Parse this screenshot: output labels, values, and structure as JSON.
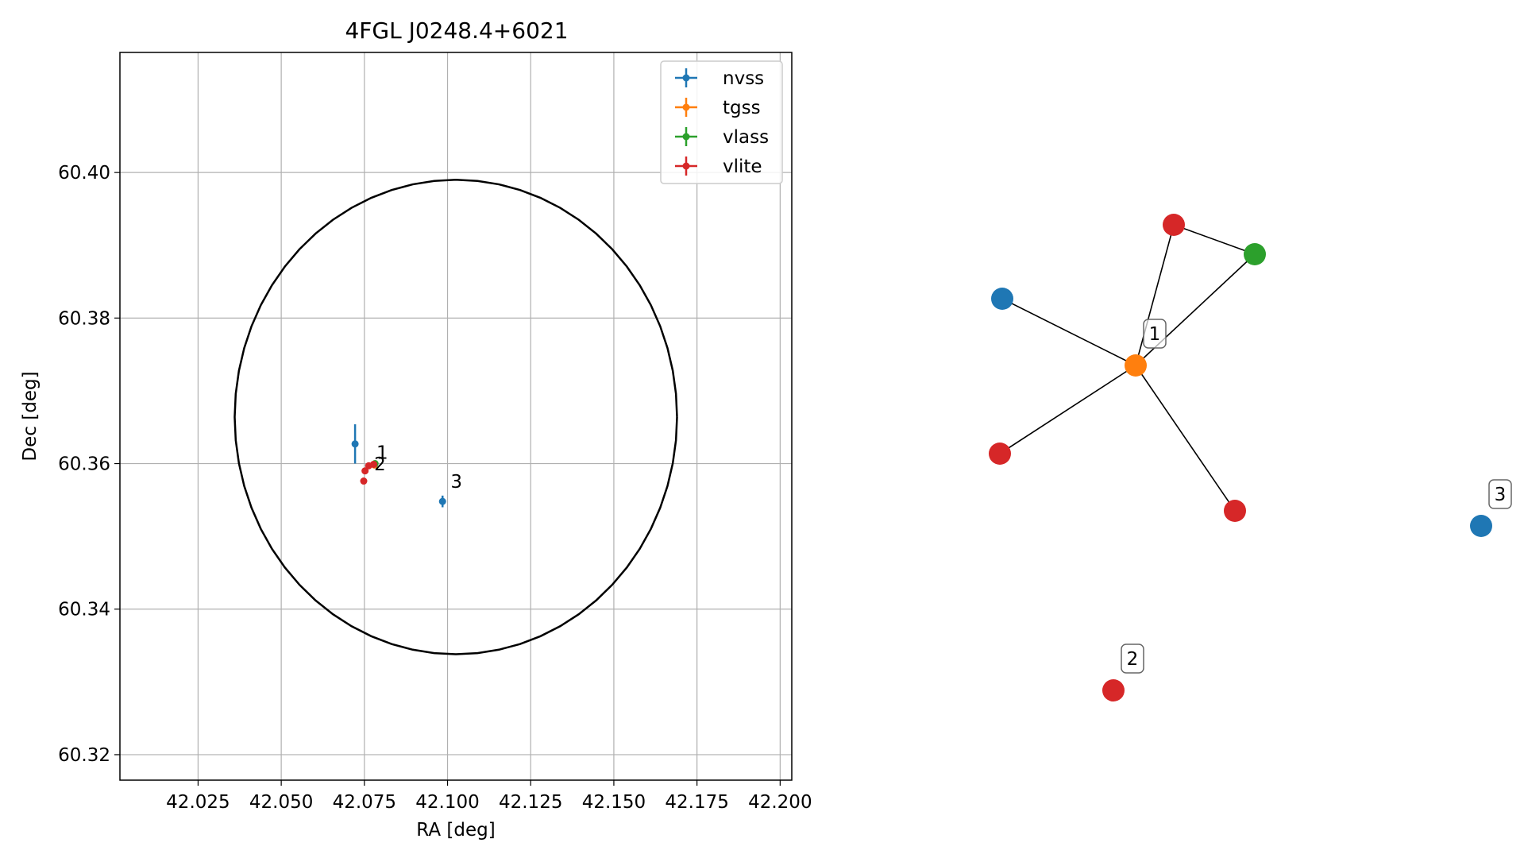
{
  "chart_data": [
    {
      "type": "scatter",
      "title": "4FGL J0248.4+6021",
      "xlabel": "RA [deg]",
      "ylabel": "Dec [deg]",
      "xlim": [
        42.0015,
        42.2035
      ],
      "ylim": [
        60.3165,
        60.4165
      ],
      "xticks": [
        42.025,
        42.05,
        42.075,
        42.1,
        42.125,
        42.15,
        42.175,
        42.2
      ],
      "xtick_labels": [
        "42.025",
        "42.050",
        "42.075",
        "42.100",
        "42.125",
        "42.150",
        "42.175",
        "42.200"
      ],
      "yticks": [
        60.32,
        60.34,
        60.36,
        60.38,
        60.4
      ],
      "ytick_labels": [
        "60.32",
        "60.34",
        "60.36",
        "60.38",
        "60.40"
      ],
      "grid": true,
      "legend_position": "top-right",
      "ellipse": {
        "center": [
          42.1025,
          60.3664
        ],
        "ra_semi_axis": 0.0665,
        "dec_semi_axis": 0.0326,
        "color": "#000000"
      },
      "series": [
        {
          "name": "nvss",
          "color": "#1f77b4",
          "points": [
            {
              "x": 42.0722,
              "y": 60.3627,
              "yerr": 0.0027,
              "xerr": 0.0003
            },
            {
              "x": 42.0985,
              "y": 60.3548,
              "yerr": 0.0008,
              "xerr": 0.0003
            }
          ]
        },
        {
          "name": "tgss",
          "color": "#ff7f0e",
          "points": [
            {
              "x": 42.078,
              "y": 60.3598,
              "yerr": 0.0002,
              "xerr": 0.0003
            }
          ]
        },
        {
          "name": "vlass",
          "color": "#2ca02c",
          "points": [
            {
              "x": 42.0782,
              "y": 60.36,
              "yerr": 0.0001,
              "xerr": 0.0001
            }
          ]
        },
        {
          "name": "vlite",
          "color": "#d62728",
          "points": [
            {
              "x": 42.0778,
              "y": 60.3599,
              "yerr": 0.0001,
              "xerr": 0.0001
            },
            {
              "x": 42.0763,
              "y": 60.3597,
              "yerr": 0.0001,
              "xerr": 0.0001
            },
            {
              "x": 42.0752,
              "y": 60.359,
              "yerr": 0.0001,
              "xerr": 0.0001
            },
            {
              "x": 42.0748,
              "y": 60.3576,
              "yerr": 0.0001,
              "xerr": 0.0001
            }
          ]
        }
      ],
      "annotations": [
        {
          "text": "1",
          "x": 42.0772,
          "y": 60.36
        },
        {
          "text": "2",
          "x": 42.0765,
          "y": 60.3584
        },
        {
          "text": "3",
          "x": 42.0995,
          "y": 60.356
        }
      ]
    },
    {
      "type": "network",
      "node_colors": {
        "nvss": "#1f77b4",
        "tgss": "#ff7f0e",
        "vlass": "#2ca02c",
        "vlite": "#d62728"
      },
      "nodes": [
        {
          "id": "hub",
          "catalog": "tgss",
          "label": "1"
        },
        {
          "id": "n_nvss",
          "catalog": "nvss",
          "label": ""
        },
        {
          "id": "n_vlite_top",
          "catalog": "vlite",
          "label": ""
        },
        {
          "id": "n_vlass",
          "catalog": "vlass",
          "label": ""
        },
        {
          "id": "n_vlite_left",
          "catalog": "vlite",
          "label": ""
        },
        {
          "id": "n_vlite_bottom",
          "catalog": "vlite",
          "label": ""
        },
        {
          "id": "n_iso2",
          "catalog": "vlite",
          "label": "2"
        },
        {
          "id": "n_iso3",
          "catalog": "nvss",
          "label": "3"
        }
      ],
      "edges": [
        [
          "hub",
          "n_nvss"
        ],
        [
          "hub",
          "n_vlite_top"
        ],
        [
          "hub",
          "n_vlass"
        ],
        [
          "hub",
          "n_vlite_left"
        ],
        [
          "hub",
          "n_vlite_bottom"
        ],
        [
          "n_vlite_top",
          "n_vlass"
        ]
      ]
    }
  ]
}
